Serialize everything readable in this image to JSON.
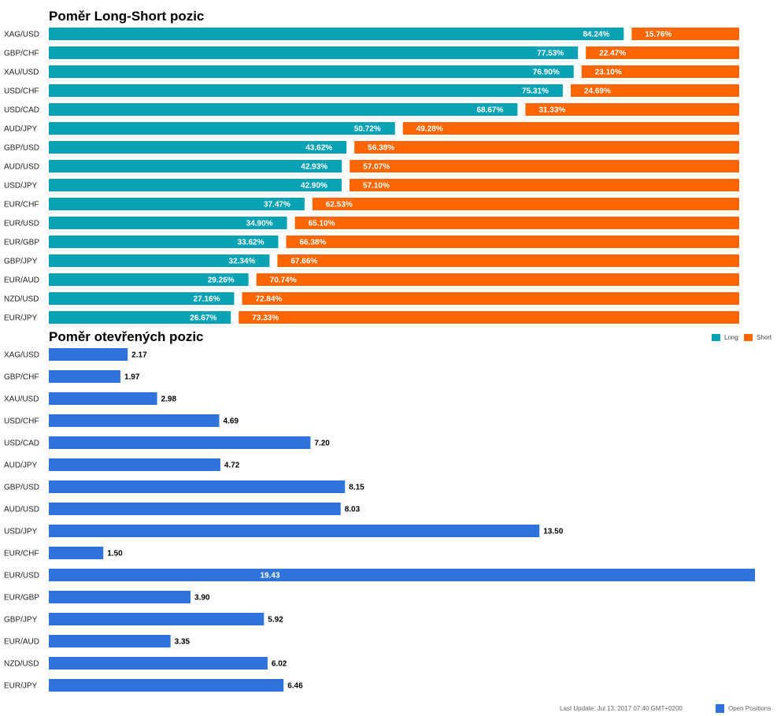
{
  "colors": {
    "long": "#0aa3b6",
    "short": "#ff6600",
    "open": "#2f74dc"
  },
  "chart_data": [
    {
      "type": "bar",
      "stacked": true,
      "orientation": "horizontal",
      "title": "Poměr Long-Short pozic",
      "categories": [
        "XAG/USD",
        "GBP/CHF",
        "XAU/USD",
        "USD/CHF",
        "USD/CAD",
        "AUD/JPY",
        "GBP/USD",
        "AUD/USD",
        "USD/JPY",
        "EUR/CHF",
        "EUR/USD",
        "EUR/GBP",
        "GBP/JPY",
        "EUR/AUD",
        "NZD/USD",
        "EUR/JPY"
      ],
      "series": [
        {
          "name": "Long",
          "values": [
            84.24,
            77.53,
            76.9,
            75.31,
            68.67,
            50.72,
            43.62,
            42.93,
            42.9,
            37.47,
            34.9,
            33.62,
            32.34,
            29.26,
            27.16,
            26.67
          ]
        },
        {
          "name": "Short",
          "values": [
            15.76,
            22.47,
            23.1,
            24.69,
            31.33,
            49.28,
            56.38,
            57.07,
            57.1,
            62.53,
            65.1,
            66.38,
            67.66,
            70.74,
            72.84,
            73.33
          ]
        }
      ],
      "value_labels": {
        "long": [
          "84.24%",
          "77.53%",
          "76.90%",
          "75.31%",
          "68.67%",
          "50.72%",
          "43.62%",
          "42.93%",
          "42.90%",
          "37.47%",
          "34.90%",
          "33.62%",
          "32.34%",
          "29.26%",
          "27.16%",
          "26.67%"
        ],
        "short": [
          "15.76%",
          "22.47%",
          "23.10%",
          "24.69%",
          "31.33%",
          "49.28%",
          "56.38%",
          "57.07%",
          "57.10%",
          "62.53%",
          "65.10%",
          "66.38%",
          "67.66%",
          "70.74%",
          "72.84%",
          "73.33%"
        ]
      },
      "xlim": [
        0,
        100
      ],
      "legend": {
        "position": "top-right",
        "items": [
          "Long",
          "Short"
        ]
      }
    },
    {
      "type": "bar",
      "orientation": "horizontal",
      "title": "Poměr otevřených pozic",
      "categories": [
        "XAG/USD",
        "GBP/CHF",
        "XAU/USD",
        "USD/CHF",
        "USD/CAD",
        "AUD/JPY",
        "GBP/USD",
        "AUD/USD",
        "USD/JPY",
        "EUR/CHF",
        "EUR/USD",
        "EUR/GBP",
        "GBP/JPY",
        "EUR/AUD",
        "NZD/USD",
        "EUR/JPY"
      ],
      "series": [
        {
          "name": "Open Positions",
          "values": [
            2.17,
            1.97,
            2.98,
            4.69,
            7.2,
            4.72,
            8.15,
            8.03,
            13.5,
            1.5,
            19.43,
            3.9,
            5.92,
            3.35,
            6.02,
            6.46
          ]
        }
      ],
      "value_labels": [
        "2.17",
        "1.97",
        "2.98",
        "4.69",
        "7.20",
        "4.72",
        "8.15",
        "8.03",
        "13.50",
        "1.50",
        "19.43",
        "3.90",
        "5.92",
        "3.35",
        "6.02",
        "6.46"
      ],
      "xlim": [
        0,
        19.43
      ],
      "legend": {
        "position": "bottom-right",
        "items": [
          "Open Positions"
        ]
      }
    }
  ],
  "footer": {
    "last_update": "Last Update: Jul 13, 2017 07:40 GMT+0200"
  }
}
